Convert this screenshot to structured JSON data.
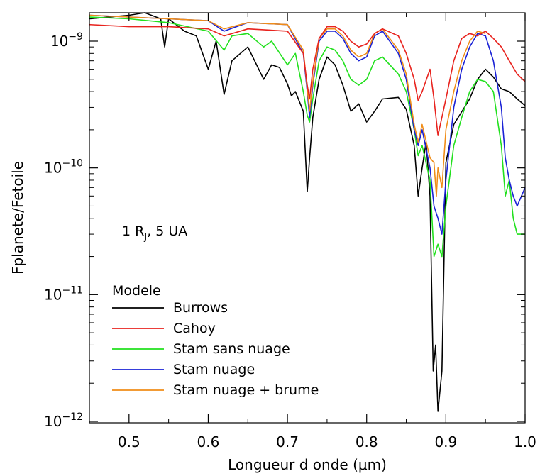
{
  "chart_data": {
    "type": "line",
    "xlabel": "Longueur d onde (μm)",
    "ylabel": "Fplanete/Fetoile",
    "x_ticks": [
      "0.5",
      "0.6",
      "0.7",
      "0.8",
      "0.9",
      "1.0"
    ],
    "x_tick_values": [
      0.5,
      0.6,
      0.7,
      0.8,
      0.9,
      1.0
    ],
    "y_ticks": [
      {
        "base": "10",
        "exp": "-9",
        "value": 1e-09
      },
      {
        "base": "10",
        "exp": "-10",
        "value": 1e-10
      },
      {
        "base": "10",
        "exp": "-11",
        "value": 1e-11
      },
      {
        "base": "10",
        "exp": "-12",
        "value": 1e-12
      }
    ],
    "xlim": [
      0.45,
      1.0
    ],
    "ylim": [
      9e-13,
      2e-09
    ],
    "yscale": "log",
    "grid": false,
    "annotation": {
      "prefix": "1 R",
      "sub": "J",
      "suffix": ", 5 UA"
    },
    "legend_title": "Modele",
    "legend_position": "bottom-left",
    "series": [
      {
        "name": "Burrows",
        "color": "#000000",
        "x": [
          0.45,
          0.5,
          0.52,
          0.54,
          0.545,
          0.55,
          0.57,
          0.585,
          0.6,
          0.61,
          0.62,
          0.63,
          0.65,
          0.67,
          0.68,
          0.69,
          0.7,
          0.705,
          0.71,
          0.72,
          0.725,
          0.728,
          0.732,
          0.74,
          0.75,
          0.76,
          0.77,
          0.78,
          0.79,
          0.8,
          0.81,
          0.82,
          0.84,
          0.85,
          0.86,
          0.865,
          0.87,
          0.875,
          0.88,
          0.884,
          0.887,
          0.89,
          0.895,
          0.9,
          0.91,
          0.93,
          0.94,
          0.95,
          0.96,
          0.97,
          0.98,
          0.99,
          1.0
        ],
        "y": [
          1.5e-09,
          1.6e-09,
          1.8e-09,
          1.5e-09,
          9e-10,
          1.5e-09,
          1.2e-09,
          1.1e-09,
          6e-10,
          1e-09,
          3.8e-10,
          7e-10,
          9e-10,
          5e-10,
          6.5e-10,
          6.2e-10,
          4.6e-10,
          3.7e-10,
          4e-10,
          2.8e-10,
          6.5e-11,
          1.2e-10,
          2.5e-10,
          5e-10,
          7.5e-10,
          6.5e-10,
          4.5e-10,
          2.8e-10,
          3.2e-10,
          2.3e-10,
          2.8e-10,
          3.5e-10,
          3.6e-10,
          2.9e-10,
          1.5e-10,
          6e-11,
          1e-10,
          1.6e-10,
          6e-11,
          2.5e-12,
          4e-12,
          1.2e-12,
          2.5e-12,
          1.1e-10,
          2.2e-10,
          3.5e-10,
          5e-10,
          6e-10,
          5.2e-10,
          4.2e-10,
          4e-10,
          3.5e-10,
          3.1e-10
        ]
      },
      {
        "name": "Cahoy",
        "color": "#e8231e",
        "x": [
          0.45,
          0.5,
          0.55,
          0.6,
          0.62,
          0.65,
          0.7,
          0.72,
          0.725,
          0.728,
          0.732,
          0.74,
          0.75,
          0.76,
          0.77,
          0.78,
          0.79,
          0.8,
          0.81,
          0.82,
          0.84,
          0.85,
          0.86,
          0.865,
          0.87,
          0.88,
          0.885,
          0.89,
          0.9,
          0.91,
          0.92,
          0.93,
          0.94,
          0.95,
          0.96,
          0.97,
          0.98,
          0.99,
          1.0
        ],
        "y": [
          1.35e-09,
          1.3e-09,
          1.3e-09,
          1.25e-09,
          1.1e-09,
          1.25e-09,
          1.2e-09,
          8e-10,
          4.5e-10,
          3.5e-10,
          6e-10,
          1.05e-09,
          1.3e-09,
          1.3e-09,
          1.2e-09,
          1e-09,
          9e-10,
          9.5e-10,
          1.15e-09,
          1.25e-09,
          1.1e-09,
          8e-10,
          5e-10,
          3.4e-10,
          4e-10,
          6e-10,
          3.5e-10,
          1.8e-10,
          3.5e-10,
          7e-10,
          1.05e-09,
          1.15e-09,
          1.1e-09,
          1.2e-09,
          1.05e-09,
          9e-10,
          7e-10,
          5.5e-10,
          4.8e-10
        ]
      },
      {
        "name": "Stam sans nuage",
        "color": "#22e01e",
        "x": [
          0.45,
          0.5,
          0.55,
          0.6,
          0.62,
          0.63,
          0.65,
          0.67,
          0.68,
          0.7,
          0.71,
          0.72,
          0.725,
          0.728,
          0.732,
          0.74,
          0.75,
          0.76,
          0.77,
          0.78,
          0.79,
          0.8,
          0.81,
          0.82,
          0.84,
          0.85,
          0.86,
          0.865,
          0.87,
          0.88,
          0.885,
          0.89,
          0.895,
          0.9,
          0.91,
          0.92,
          0.93,
          0.94,
          0.95,
          0.96,
          0.97,
          0.975,
          0.98,
          0.985,
          0.99,
          1.0
        ],
        "y": [
          1.55e-09,
          1.5e-09,
          1.4e-09,
          1.2e-09,
          8.5e-10,
          1.1e-09,
          1.15e-09,
          9e-10,
          1e-09,
          6.5e-10,
          8e-10,
          4e-10,
          2.6e-10,
          2.3e-10,
          3.5e-10,
          7e-10,
          9e-10,
          8.5e-10,
          7e-10,
          5e-10,
          4.5e-10,
          5e-10,
          7e-10,
          7.5e-10,
          5.5e-10,
          4e-10,
          2e-10,
          1.25e-10,
          1.5e-10,
          8e-11,
          2e-11,
          2.5e-11,
          2e-11,
          5e-11,
          1.5e-10,
          2.5e-10,
          4e-10,
          5e-10,
          4.8e-10,
          4e-10,
          1.5e-10,
          6e-11,
          8e-11,
          4e-11,
          3e-11,
          3e-11
        ]
      },
      {
        "name": "Stam nuage",
        "color": "#1a22d6",
        "x": [
          0.45,
          0.5,
          0.55,
          0.6,
          0.62,
          0.65,
          0.7,
          0.72,
          0.725,
          0.728,
          0.732,
          0.74,
          0.75,
          0.76,
          0.77,
          0.78,
          0.79,
          0.8,
          0.81,
          0.82,
          0.84,
          0.85,
          0.86,
          0.865,
          0.87,
          0.88,
          0.885,
          0.89,
          0.895,
          0.9,
          0.91,
          0.92,
          0.93,
          0.94,
          0.95,
          0.96,
          0.97,
          0.975,
          0.98,
          0.985,
          0.99,
          1.0
        ],
        "y": [
          1.6e-09,
          1.55e-09,
          1.5e-09,
          1.45e-09,
          1.2e-09,
          1.4e-09,
          1.35e-09,
          8e-10,
          4e-10,
          2.5e-10,
          4.5e-10,
          1e-09,
          1.2e-09,
          1.2e-09,
          1.05e-09,
          8e-10,
          7e-10,
          7.5e-10,
          1.1e-09,
          1.2e-09,
          8e-10,
          5e-10,
          2e-10,
          1.5e-10,
          2e-10,
          1e-10,
          5e-11,
          4e-11,
          3e-11,
          8e-11,
          3e-10,
          6e-10,
          9e-10,
          1.15e-09,
          1.1e-09,
          7e-10,
          3e-10,
          1.2e-10,
          8e-11,
          6e-11,
          5e-11,
          7e-11
        ]
      },
      {
        "name": "Stam nuage + brume",
        "color": "#f08d18",
        "x": [
          0.45,
          0.5,
          0.55,
          0.6,
          0.62,
          0.65,
          0.7,
          0.72,
          0.725,
          0.728,
          0.732,
          0.74,
          0.75,
          0.76,
          0.77,
          0.78,
          0.79,
          0.8,
          0.81,
          0.82,
          0.84,
          0.85,
          0.86,
          0.865,
          0.87,
          0.88,
          0.885,
          0.888,
          0.89,
          0.895,
          0.9,
          0.91,
          0.92,
          0.93,
          0.94,
          0.95
        ],
        "y": [
          1.6e-09,
          1.55e-09,
          1.5e-09,
          1.45e-09,
          1.25e-09,
          1.4e-09,
          1.35e-09,
          8.5e-10,
          4.2e-10,
          2.8e-10,
          4.8e-10,
          1.05e-09,
          1.25e-09,
          1.25e-09,
          1.1e-09,
          8.5e-10,
          7.5e-10,
          8e-10,
          1.15e-09,
          1.25e-09,
          8.5e-10,
          5.5e-10,
          2.2e-10,
          1.6e-10,
          2.2e-10,
          1.2e-10,
          1.1e-10,
          6e-11,
          1e-10,
          7e-11,
          2e-10,
          4e-10,
          7e-10,
          1e-09,
          1.2e-09,
          1.15e-09
        ]
      }
    ]
  }
}
